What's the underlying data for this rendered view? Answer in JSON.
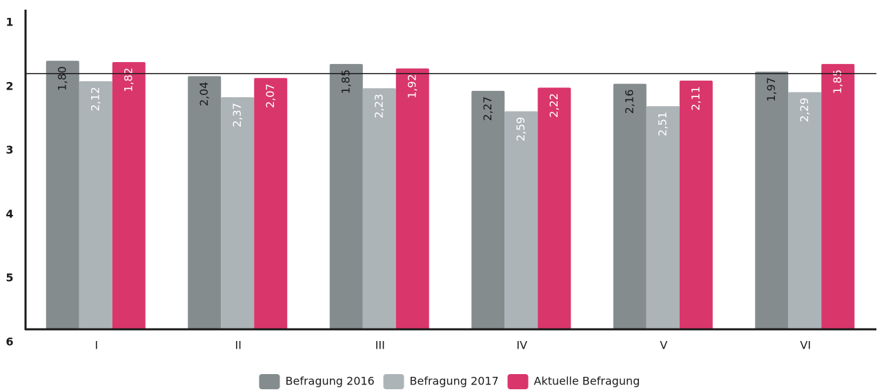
{
  "chart_data": {
    "type": "bar",
    "categories": [
      "I",
      "II",
      "III",
      "IV",
      "V",
      "VI"
    ],
    "series": [
      {
        "name": "Befragung 2016",
        "color": "#848c8e",
        "label_color": "#1a1a1a",
        "values": [
          1.8,
          2.04,
          1.85,
          2.27,
          2.16,
          1.97
        ],
        "value_labels": [
          "1,80",
          "2,04",
          "1,85",
          "2,27",
          "2,16",
          "1,97"
        ]
      },
      {
        "name": "Befragung 2017",
        "color": "#adb4b7",
        "label_color": "#ffffff",
        "values": [
          2.12,
          2.37,
          2.23,
          2.59,
          2.51,
          2.29
        ],
        "value_labels": [
          "2,12",
          "2,37",
          "2,23",
          "2,59",
          "2,51",
          "2,29"
        ]
      },
      {
        "name": "Aktuelle Befragung",
        "color": "#d9366b",
        "label_color": "#ffffff",
        "values": [
          1.82,
          2.07,
          1.92,
          2.22,
          2.11,
          1.85
        ],
        "value_labels": [
          "1,82",
          "2,07",
          "1,92",
          "2,22",
          "2,11",
          "1,85"
        ]
      }
    ],
    "ylim": [
      6,
      1
    ],
    "yticks": [
      1,
      2,
      3,
      4,
      5,
      6
    ],
    "reference_line": 2,
    "legend": "bottom"
  }
}
